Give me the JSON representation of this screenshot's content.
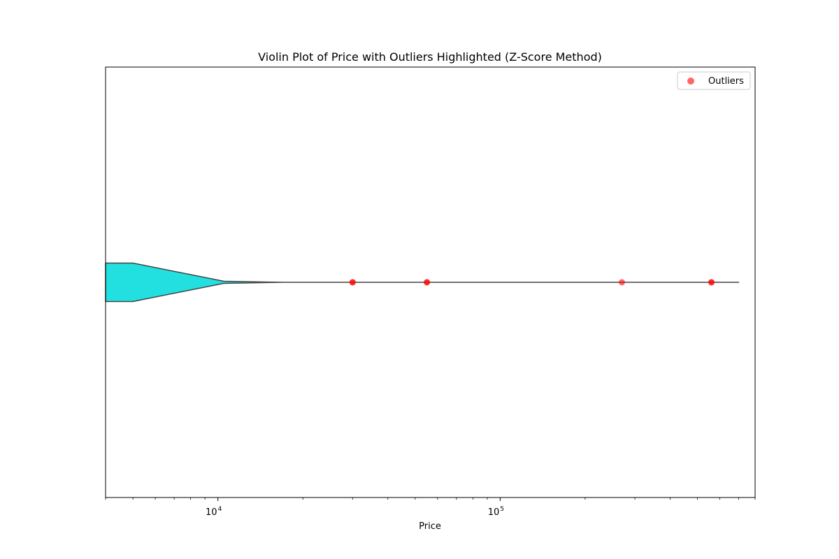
{
  "chart_data": {
    "type": "violin",
    "title": "Violin Plot of Price with Outliers Highlighted (Z-Score Method)",
    "xlabel": "Price",
    "ylabel": "",
    "x_scale": "log",
    "xlim": [
      4000,
      800000
    ],
    "x_ticks": [
      {
        "value": 10000,
        "base": "10",
        "exp": "4"
      },
      {
        "value": 100000,
        "base": "10",
        "exp": "5"
      }
    ],
    "violin": {
      "color": "#22e0e0",
      "edge_color": "#444444",
      "profile": [
        {
          "x": 4000,
          "half_width": 0.18
        },
        {
          "x": 5000,
          "half_width": 0.18
        },
        {
          "x": 10500,
          "half_width": 0.01
        },
        {
          "x": 17000,
          "half_width": 0.0
        },
        {
          "x": 700000,
          "half_width": 0.0
        }
      ]
    },
    "outliers": {
      "name": "Outliers",
      "color": "#ff0000",
      "x": [
        30000,
        30000,
        55000,
        55000,
        270000,
        560000,
        560000
      ]
    },
    "legend": {
      "position": "top-right",
      "entries": [
        "Outliers"
      ]
    },
    "grid": false
  }
}
